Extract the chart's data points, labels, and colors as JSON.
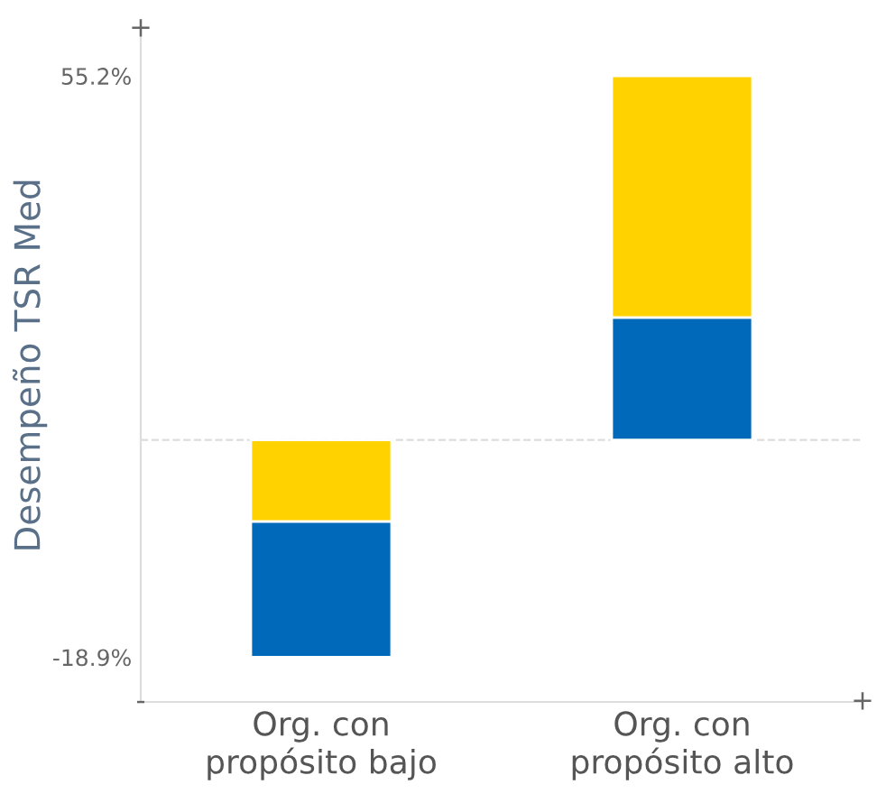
{
  "chart_data": {
    "type": "bar",
    "ylabel": "Desempeño TSR Med",
    "categories": [
      "Org. con\npropósito bajo",
      "Org. con\npropósito alto"
    ],
    "series": [
      {
        "colors": [
          "#ffd200",
          "#0069b9"
        ],
        "base": [
          8.8,
          8.8
        ],
        "values": [
          -10.4,
          15.6
        ]
      },
      {
        "colors": [
          "#0069b9",
          "#ffd200"
        ],
        "base": [
          -1.6,
          24.4
        ],
        "values": [
          -17.3,
          30.8
        ]
      }
    ],
    "ylim": [
      -24.6,
      61.2
    ],
    "yticks": [
      {
        "value": -18.9,
        "label": "-18.9%"
      },
      {
        "value": 55.2,
        "label": "55.2%"
      }
    ],
    "ref_lines": [
      {
        "axis": "y",
        "value": 8.8,
        "color": "#dddddd",
        "line_style": "dashed"
      }
    ],
    "annotations": [
      "+",
      "-",
      "+"
    ],
    "grid": false,
    "legend": false
  }
}
